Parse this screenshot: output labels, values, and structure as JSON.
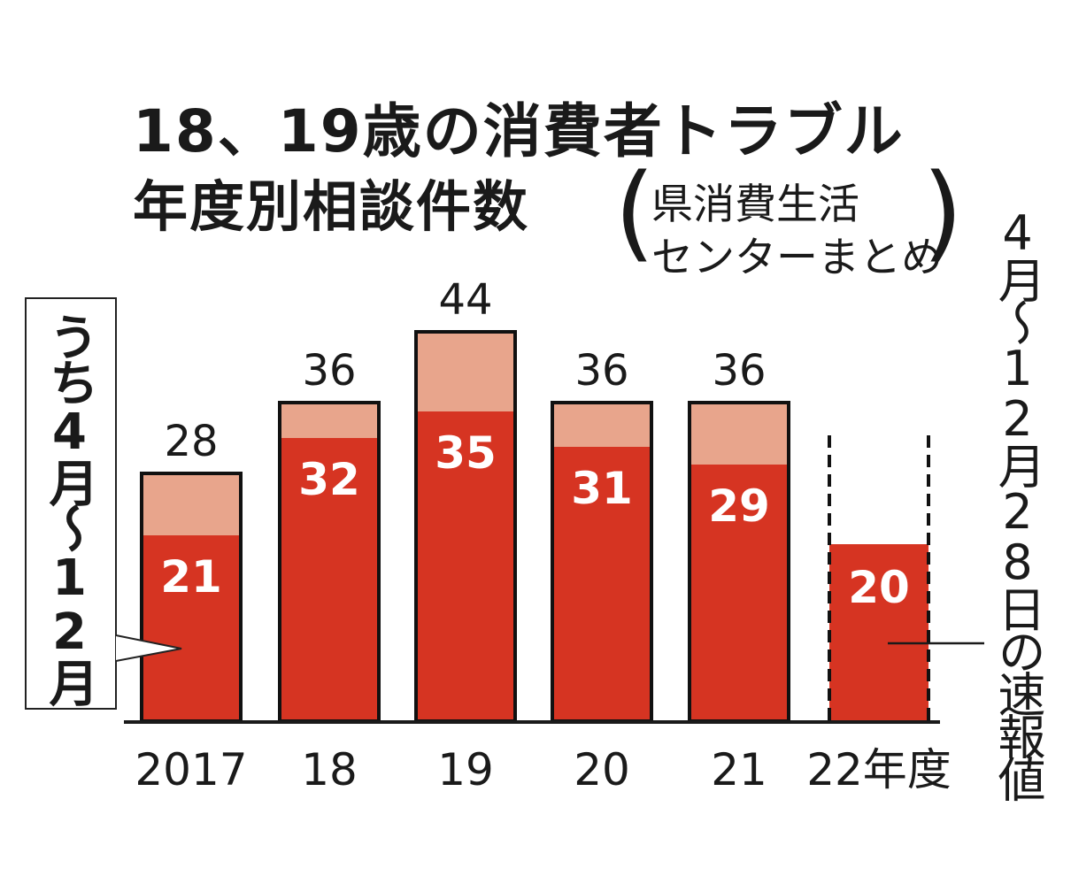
{
  "chart_data": {
    "type": "bar",
    "title": "18、19歳の消費者トラブル",
    "subtitle": "年度別相談件数",
    "source": [
      "県消費生活",
      "センターまとめ"
    ],
    "categories": [
      "2017",
      "18",
      "19",
      "20",
      "21",
      "22年度"
    ],
    "series": [
      {
        "name": "うち4月～12月",
        "values": [
          21,
          32,
          35,
          31,
          29,
          20
        ]
      }
    ],
    "totals": [
      28,
      36,
      44,
      36,
      36,
      null
    ],
    "legend_label": "うち4月～12月",
    "annotation": "4月～12月28日の速報値",
    "colors": {
      "total": "#e8a58c",
      "apr_dec": "#d63422",
      "outline": "#111111"
    },
    "ylim": [
      0,
      46
    ],
    "grid": false
  }
}
